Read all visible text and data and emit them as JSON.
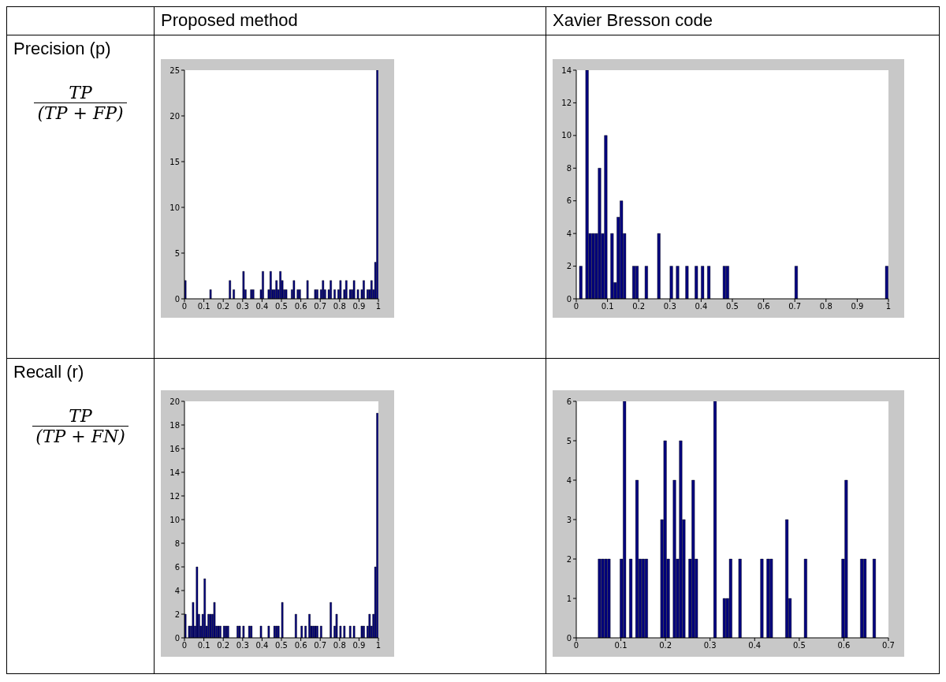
{
  "chart_data": [
    {
      "type": "histogram",
      "title": "Proposed method",
      "annotations": [
        "Precision (p)",
        "TP",
        "(TP + FP)"
      ],
      "color": "#00007f",
      "bins": [
        0,
        0.01,
        0.02,
        0.03,
        0.04,
        0.05,
        0.06,
        0.07,
        0.08,
        0.09,
        0.1,
        0.11,
        0.12,
        0.13,
        0.14,
        0.15,
        0.16,
        0.17,
        0.18,
        0.19,
        0.2,
        0.21,
        0.22,
        0.23,
        0.24,
        0.25,
        0.26,
        0.27,
        0.28,
        0.29,
        0.3,
        0.31,
        0.32,
        0.33,
        0.34,
        0.35,
        0.36,
        0.37,
        0.38,
        0.39,
        0.4,
        0.41,
        0.42,
        0.43,
        0.44,
        0.45,
        0.46,
        0.47,
        0.48,
        0.49,
        0.5,
        0.51,
        0.52,
        0.53,
        0.54,
        0.55,
        0.56,
        0.57,
        0.58,
        0.59,
        0.6,
        0.61,
        0.62,
        0.63,
        0.64,
        0.65,
        0.66,
        0.67,
        0.68,
        0.69,
        0.7,
        0.71,
        0.72,
        0.73,
        0.74,
        0.75,
        0.76,
        0.77,
        0.78,
        0.79,
        0.8,
        0.81,
        0.82,
        0.83,
        0.84,
        0.85,
        0.86,
        0.87,
        0.88,
        0.89,
        0.9,
        0.91,
        0.92,
        0.93,
        0.94,
        0.95,
        0.96,
        0.97,
        0.98,
        0.99,
        1
      ],
      "values": [
        2,
        0,
        0,
        0,
        0,
        0,
        0,
        0,
        0,
        0,
        0,
        0,
        0,
        1,
        0,
        0,
        0,
        0,
        0,
        0,
        0,
        0,
        0,
        2,
        0,
        1,
        0,
        0,
        0,
        0,
        3,
        1,
        0,
        0,
        1,
        1,
        0,
        0,
        0,
        1,
        3,
        0,
        0,
        1,
        3,
        1,
        1,
        2,
        1,
        3,
        2,
        1,
        1,
        0,
        0,
        1,
        2,
        0,
        1,
        1,
        0,
        0,
        0,
        2,
        0,
        0,
        0,
        1,
        1,
        0,
        1,
        2,
        1,
        0,
        1,
        2,
        0,
        1,
        0,
        1,
        2,
        0,
        1,
        2,
        0,
        1,
        1,
        2,
        0,
        1,
        0,
        1,
        2,
        0,
        1,
        1,
        2,
        1,
        4,
        25
      ],
      "xlim": [
        0,
        1
      ],
      "xticks": [
        0,
        0.1,
        0.2,
        0.3,
        0.4,
        0.5,
        0.6,
        0.7,
        0.8,
        0.9,
        1
      ],
      "ylim": [
        0,
        25
      ],
      "yticks": [
        0,
        5,
        10,
        15,
        20,
        25
      ]
    },
    {
      "type": "histogram",
      "title": "Xavier Bresson code",
      "color": "#00007f",
      "bins": [
        0,
        0.01,
        0.02,
        0.03,
        0.04,
        0.05,
        0.06,
        0.07,
        0.08,
        0.09,
        0.1,
        0.11,
        0.12,
        0.13,
        0.14,
        0.15,
        0.16,
        0.17,
        0.18,
        0.19,
        0.2,
        0.21,
        0.22,
        0.23,
        0.24,
        0.25,
        0.26,
        0.27,
        0.28,
        0.29,
        0.3,
        0.31,
        0.32,
        0.33,
        0.34,
        0.35,
        0.36,
        0.37,
        0.38,
        0.39,
        0.4,
        0.41,
        0.42,
        0.43,
        0.44,
        0.45,
        0.46,
        0.47,
        0.48,
        0.49,
        0.5,
        0.51,
        0.52,
        0.53,
        0.54,
        0.55,
        0.56,
        0.57,
        0.58,
        0.59,
        0.6,
        0.61,
        0.62,
        0.63,
        0.64,
        0.65,
        0.66,
        0.67,
        0.68,
        0.69,
        0.7,
        0.71,
        0.72,
        0.73,
        0.74,
        0.75,
        0.76,
        0.77,
        0.78,
        0.79,
        0.8,
        0.81,
        0.82,
        0.83,
        0.84,
        0.85,
        0.86,
        0.87,
        0.88,
        0.89,
        0.9,
        0.91,
        0.92,
        0.93,
        0.94,
        0.95,
        0.96,
        0.97,
        0.98,
        0.99,
        1
      ],
      "values": [
        0,
        2,
        0,
        14,
        4,
        4,
        4,
        8,
        4,
        10,
        0,
        4,
        1,
        5,
        6,
        4,
        0,
        0,
        2,
        2,
        0,
        0,
        2,
        0,
        0,
        0,
        4,
        0,
        0,
        0,
        2,
        0,
        2,
        0,
        0,
        2,
        0,
        0,
        2,
        0,
        2,
        0,
        2,
        0,
        0,
        0,
        0,
        2,
        2,
        0,
        0,
        0,
        0,
        0,
        0,
        0,
        0,
        0,
        0,
        0,
        0,
        0,
        0,
        0,
        0,
        0,
        0,
        0,
        0,
        0,
        2,
        0,
        0,
        0,
        0,
        0,
        0,
        0,
        0,
        0,
        0,
        0,
        0,
        0,
        0,
        0,
        0,
        0,
        0,
        0,
        0,
        0,
        0,
        0,
        0,
        0,
        0,
        0,
        0,
        2
      ],
      "xlim": [
        0,
        1
      ],
      "xticks": [
        0,
        0.1,
        0.2,
        0.3,
        0.4,
        0.5,
        0.6,
        0.7,
        0.8,
        0.9,
        1
      ],
      "ylim": [
        0,
        14
      ],
      "yticks": [
        0,
        2,
        4,
        6,
        8,
        10,
        12,
        14
      ]
    },
    {
      "type": "histogram",
      "annotations": [
        "Recall (r)",
        "TP",
        "(TP + FN)"
      ],
      "color": "#00007f",
      "bins": [
        0,
        0.01,
        0.02,
        0.03,
        0.04,
        0.05,
        0.06,
        0.07,
        0.08,
        0.09,
        0.1,
        0.11,
        0.12,
        0.13,
        0.14,
        0.15,
        0.16,
        0.17,
        0.18,
        0.19,
        0.2,
        0.21,
        0.22,
        0.23,
        0.24,
        0.25,
        0.26,
        0.27,
        0.28,
        0.29,
        0.3,
        0.31,
        0.32,
        0.33,
        0.34,
        0.35,
        0.36,
        0.37,
        0.38,
        0.39,
        0.4,
        0.41,
        0.42,
        0.43,
        0.44,
        0.45,
        0.46,
        0.47,
        0.48,
        0.49,
        0.5,
        0.51,
        0.52,
        0.53,
        0.54,
        0.55,
        0.56,
        0.57,
        0.58,
        0.59,
        0.6,
        0.61,
        0.62,
        0.63,
        0.64,
        0.65,
        0.66,
        0.67,
        0.68,
        0.69,
        0.7,
        0.71,
        0.72,
        0.73,
        0.74,
        0.75,
        0.76,
        0.77,
        0.78,
        0.79,
        0.8,
        0.81,
        0.82,
        0.83,
        0.84,
        0.85,
        0.86,
        0.87,
        0.88,
        0.89,
        0.9,
        0.91,
        0.92,
        0.93,
        0.94,
        0.95,
        0.96,
        0.97,
        0.98,
        0.99,
        1
      ],
      "values": [
        2,
        0,
        1,
        1,
        3,
        1,
        6,
        2,
        1,
        2,
        5,
        1,
        2,
        2,
        2,
        3,
        1,
        1,
        1,
        0,
        1,
        1,
        1,
        0,
        0,
        0,
        0,
        1,
        1,
        0,
        1,
        0,
        0,
        1,
        1,
        0,
        0,
        0,
        0,
        1,
        0,
        0,
        0,
        1,
        0,
        0,
        1,
        1,
        1,
        0,
        3,
        0,
        0,
        0,
        0,
        0,
        0,
        2,
        0,
        0,
        1,
        0,
        1,
        0,
        2,
        1,
        1,
        1,
        1,
        0,
        1,
        0,
        0,
        0,
        0,
        3,
        0,
        1,
        2,
        0,
        1,
        0,
        1,
        0,
        0,
        1,
        0,
        1,
        0,
        0,
        0,
        1,
        1,
        0,
        1,
        2,
        1,
        2,
        6,
        19
      ],
      "xlim": [
        0,
        1
      ],
      "xticks": [
        0,
        0.1,
        0.2,
        0.3,
        0.4,
        0.5,
        0.6,
        0.7,
        0.8,
        0.9,
        1
      ],
      "ylim": [
        0,
        20
      ],
      "yticks": [
        0,
        2,
        4,
        6,
        8,
        10,
        12,
        14,
        16,
        18,
        20
      ]
    },
    {
      "type": "histogram",
      "color": "#00007f",
      "bins": [
        0,
        0.007,
        0.014,
        0.021,
        0.028,
        0.035,
        0.042,
        0.049,
        0.056,
        0.063,
        0.07,
        0.077,
        0.084,
        0.091,
        0.098,
        0.105,
        0.112,
        0.119,
        0.126,
        0.133,
        0.14,
        0.147,
        0.154,
        0.161,
        0.168,
        0.175,
        0.182,
        0.189,
        0.196,
        0.203,
        0.21,
        0.217,
        0.224,
        0.231,
        0.238,
        0.245,
        0.252,
        0.259,
        0.266,
        0.273,
        0.28,
        0.287,
        0.294,
        0.301,
        0.308,
        0.315,
        0.322,
        0.329,
        0.336,
        0.343,
        0.35,
        0.357,
        0.364,
        0.371,
        0.378,
        0.385,
        0.392,
        0.399,
        0.406,
        0.413,
        0.42,
        0.427,
        0.434,
        0.441,
        0.448,
        0.455,
        0.462,
        0.469,
        0.476,
        0.483,
        0.49,
        0.497,
        0.504,
        0.511,
        0.518,
        0.525,
        0.532,
        0.539,
        0.546,
        0.553,
        0.56,
        0.567,
        0.574,
        0.581,
        0.588,
        0.595,
        0.602,
        0.609,
        0.616,
        0.623,
        0.63,
        0.637,
        0.644,
        0.651,
        0.658,
        0.665,
        0.672,
        0.679,
        0.686,
        0.693,
        0.7
      ],
      "values": [
        0,
        0,
        0,
        0,
        0,
        0,
        0,
        2,
        2,
        2,
        2,
        0,
        0,
        0,
        2,
        6,
        0,
        2,
        0,
        4,
        2,
        2,
        2,
        0,
        0,
        0,
        0,
        3,
        5,
        2,
        0,
        4,
        2,
        5,
        3,
        0,
        2,
        4,
        2,
        0,
        0,
        0,
        0,
        0,
        6,
        0,
        0,
        1,
        1,
        2,
        0,
        0,
        2,
        0,
        0,
        0,
        0,
        0,
        0,
        2,
        0,
        2,
        2,
        0,
        0,
        0,
        0,
        3,
        1,
        0,
        0,
        0,
        0,
        2,
        0,
        0,
        0,
        0,
        0,
        0,
        0,
        0,
        0,
        0,
        0,
        2,
        4,
        0,
        0,
        0,
        0,
        2,
        2,
        0,
        0,
        2,
        0,
        0,
        0,
        0
      ],
      "xlim": [
        0,
        0.7
      ],
      "xticks": [
        0,
        0.1,
        0.2,
        0.3,
        0.4,
        0.5,
        0.6,
        0.7
      ],
      "ylim": [
        0,
        6
      ],
      "yticks": [
        0,
        1,
        2,
        3,
        4,
        5,
        6
      ]
    }
  ]
}
